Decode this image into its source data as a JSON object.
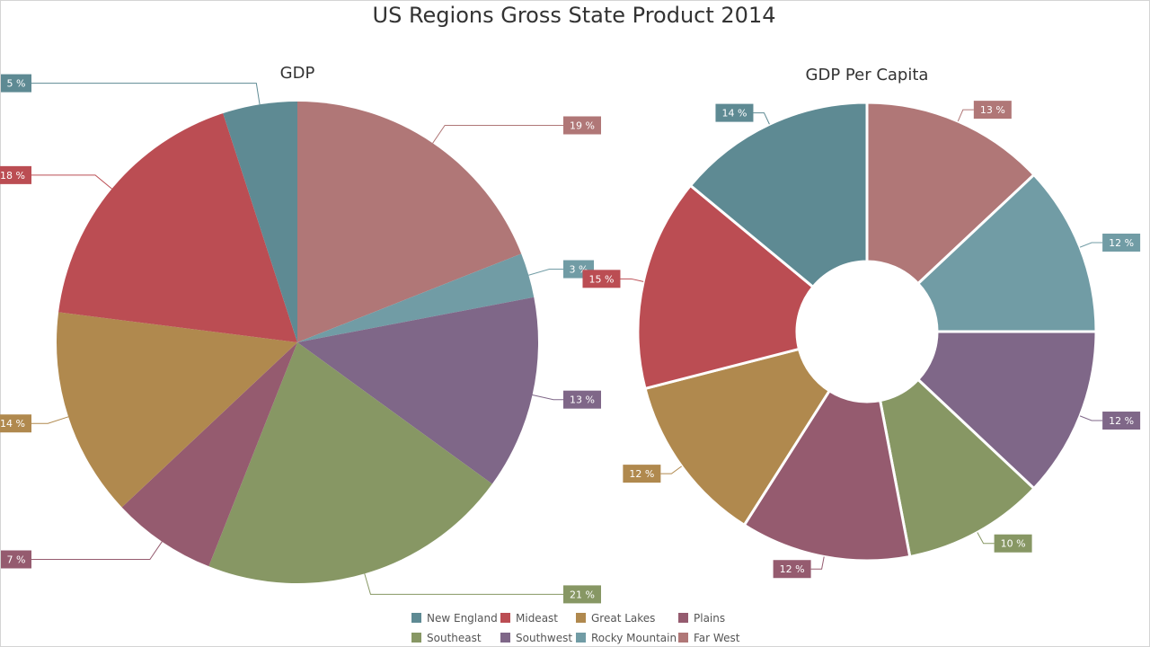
{
  "chart_data": {
    "type": "pie",
    "title": "US Regions Gross State Product 2014",
    "series_order": [
      "New England",
      "Mideast",
      "Great Lakes",
      "Plains",
      "Southeast",
      "Southwest",
      "Rocky Mountain",
      "Far West"
    ],
    "colors": {
      "New England": "#5e8a93",
      "Mideast": "#bb4d53",
      "Great Lakes": "#b0894e",
      "Plains": "#955b6f",
      "Southeast": "#879764",
      "Southwest": "#7f6788",
      "Rocky Mountain": "#719ca5",
      "Far West": "#b07777"
    },
    "charts": [
      {
        "title": "GDP",
        "type": "pie",
        "slices": [
          {
            "name": "Far West",
            "value": 19,
            "label": "19 %"
          },
          {
            "name": "Rocky Mountain",
            "value": 3,
            "label": "3 %"
          },
          {
            "name": "Southwest",
            "value": 13,
            "label": "13 %"
          },
          {
            "name": "Southeast",
            "value": 21,
            "label": "21 %"
          },
          {
            "name": "Plains",
            "value": 7,
            "label": "7 %"
          },
          {
            "name": "Great Lakes",
            "value": 14,
            "label": "14 %"
          },
          {
            "name": "Mideast",
            "value": 18,
            "label": "18 %"
          },
          {
            "name": "New England",
            "value": 5,
            "label": "5 %"
          }
        ]
      },
      {
        "title": "GDP Per Capita",
        "type": "donut",
        "slices": [
          {
            "name": "Far West",
            "value": 13,
            "label": "13 %"
          },
          {
            "name": "Rocky Mountain",
            "value": 12,
            "label": "12 %"
          },
          {
            "name": "Southwest",
            "value": 12,
            "label": "12 %"
          },
          {
            "name": "Southeast",
            "value": 10,
            "label": "10 %"
          },
          {
            "name": "Plains",
            "value": 12,
            "label": "12 %"
          },
          {
            "name": "Great Lakes",
            "value": 12,
            "label": "12 %"
          },
          {
            "name": "Mideast",
            "value": 15,
            "label": "15 %"
          },
          {
            "name": "New England",
            "value": 14,
            "label": "14 %"
          }
        ]
      }
    ],
    "legend": {
      "position": "bottom",
      "items": [
        "New England",
        "Mideast",
        "Great Lakes",
        "Plains",
        "Southeast",
        "Southwest",
        "Rocky Mountain",
        "Far West"
      ]
    }
  }
}
